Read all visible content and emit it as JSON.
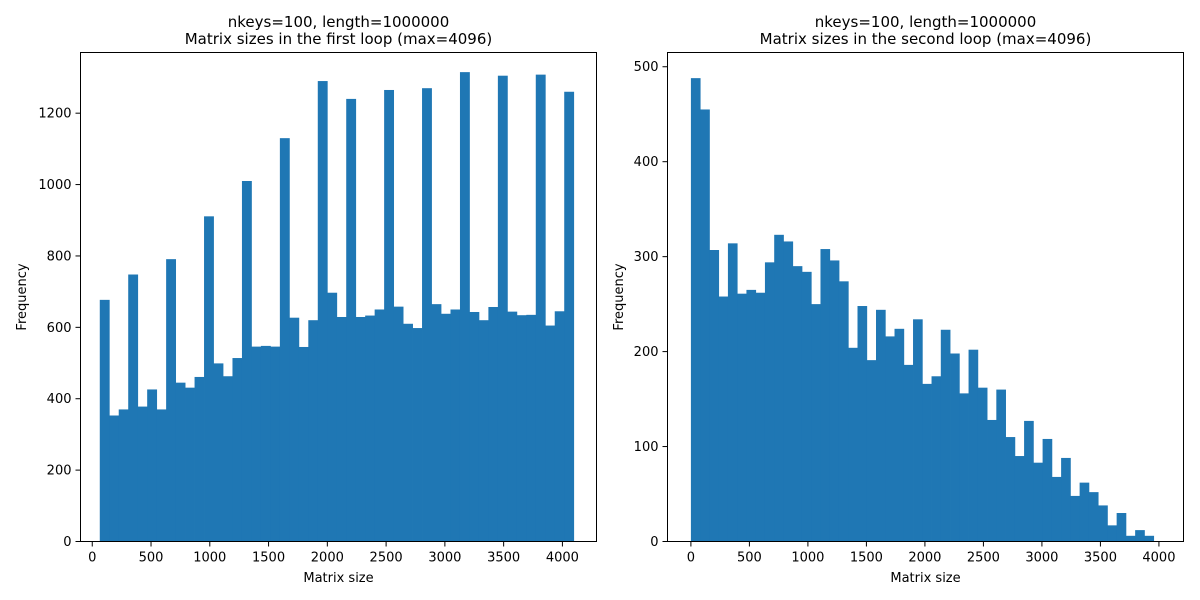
{
  "chart_data": [
    {
      "type": "bar",
      "title": "nkeys=100, length=1000000",
      "subtitle": "Matrix sizes in the first loop (max=4096)",
      "xlabel": "Matrix size",
      "ylabel": "Frequency",
      "xlim": [
        -100,
        4290
      ],
      "ylim": [
        0,
        1370
      ],
      "xticks": [
        0,
        500,
        1000,
        1500,
        2000,
        2500,
        3000,
        3500,
        4000
      ],
      "yticks": [
        0,
        200,
        400,
        600,
        800,
        1000,
        1200
      ],
      "bin_start": 64,
      "bin_width": 80.64,
      "values": [
        677,
        353,
        370,
        748,
        378,
        426,
        370,
        791,
        445,
        431,
        461,
        911,
        499,
        463,
        514,
        1010,
        546,
        548,
        546,
        1130,
        627,
        545,
        620,
        1290,
        697,
        629,
        1240,
        629,
        633,
        650,
        1265,
        658,
        610,
        598,
        1270,
        665,
        638,
        650,
        1315,
        643,
        620,
        657,
        1305,
        644,
        634,
        635,
        1308,
        605,
        645,
        1260
      ],
      "color": "#1f77b4"
    },
    {
      "type": "bar",
      "title": "nkeys=100, length=1000000",
      "subtitle": "Matrix sizes in the second loop (max=4096)",
      "xlabel": "Matrix size",
      "ylabel": "Frequency",
      "xlim": [
        -200,
        4210
      ],
      "ylim": [
        0,
        515
      ],
      "xticks": [
        0,
        500,
        1000,
        1500,
        2000,
        2500,
        3000,
        3500,
        4000
      ],
      "yticks": [
        0,
        100,
        200,
        300,
        400,
        500
      ],
      "bin_start": 0,
      "bin_width": 79.1,
      "values": [
        488,
        455,
        307,
        258,
        314,
        261,
        265,
        262,
        294,
        323,
        316,
        290,
        284,
        250,
        308,
        296,
        274,
        204,
        248,
        191,
        244,
        216,
        224,
        186,
        234,
        166,
        174,
        223,
        198,
        156,
        202,
        162,
        128,
        160,
        110,
        90,
        127,
        83,
        108,
        68,
        88,
        48,
        62,
        52,
        38,
        17,
        30,
        6,
        12,
        6
      ],
      "color": "#1f77b4"
    }
  ]
}
